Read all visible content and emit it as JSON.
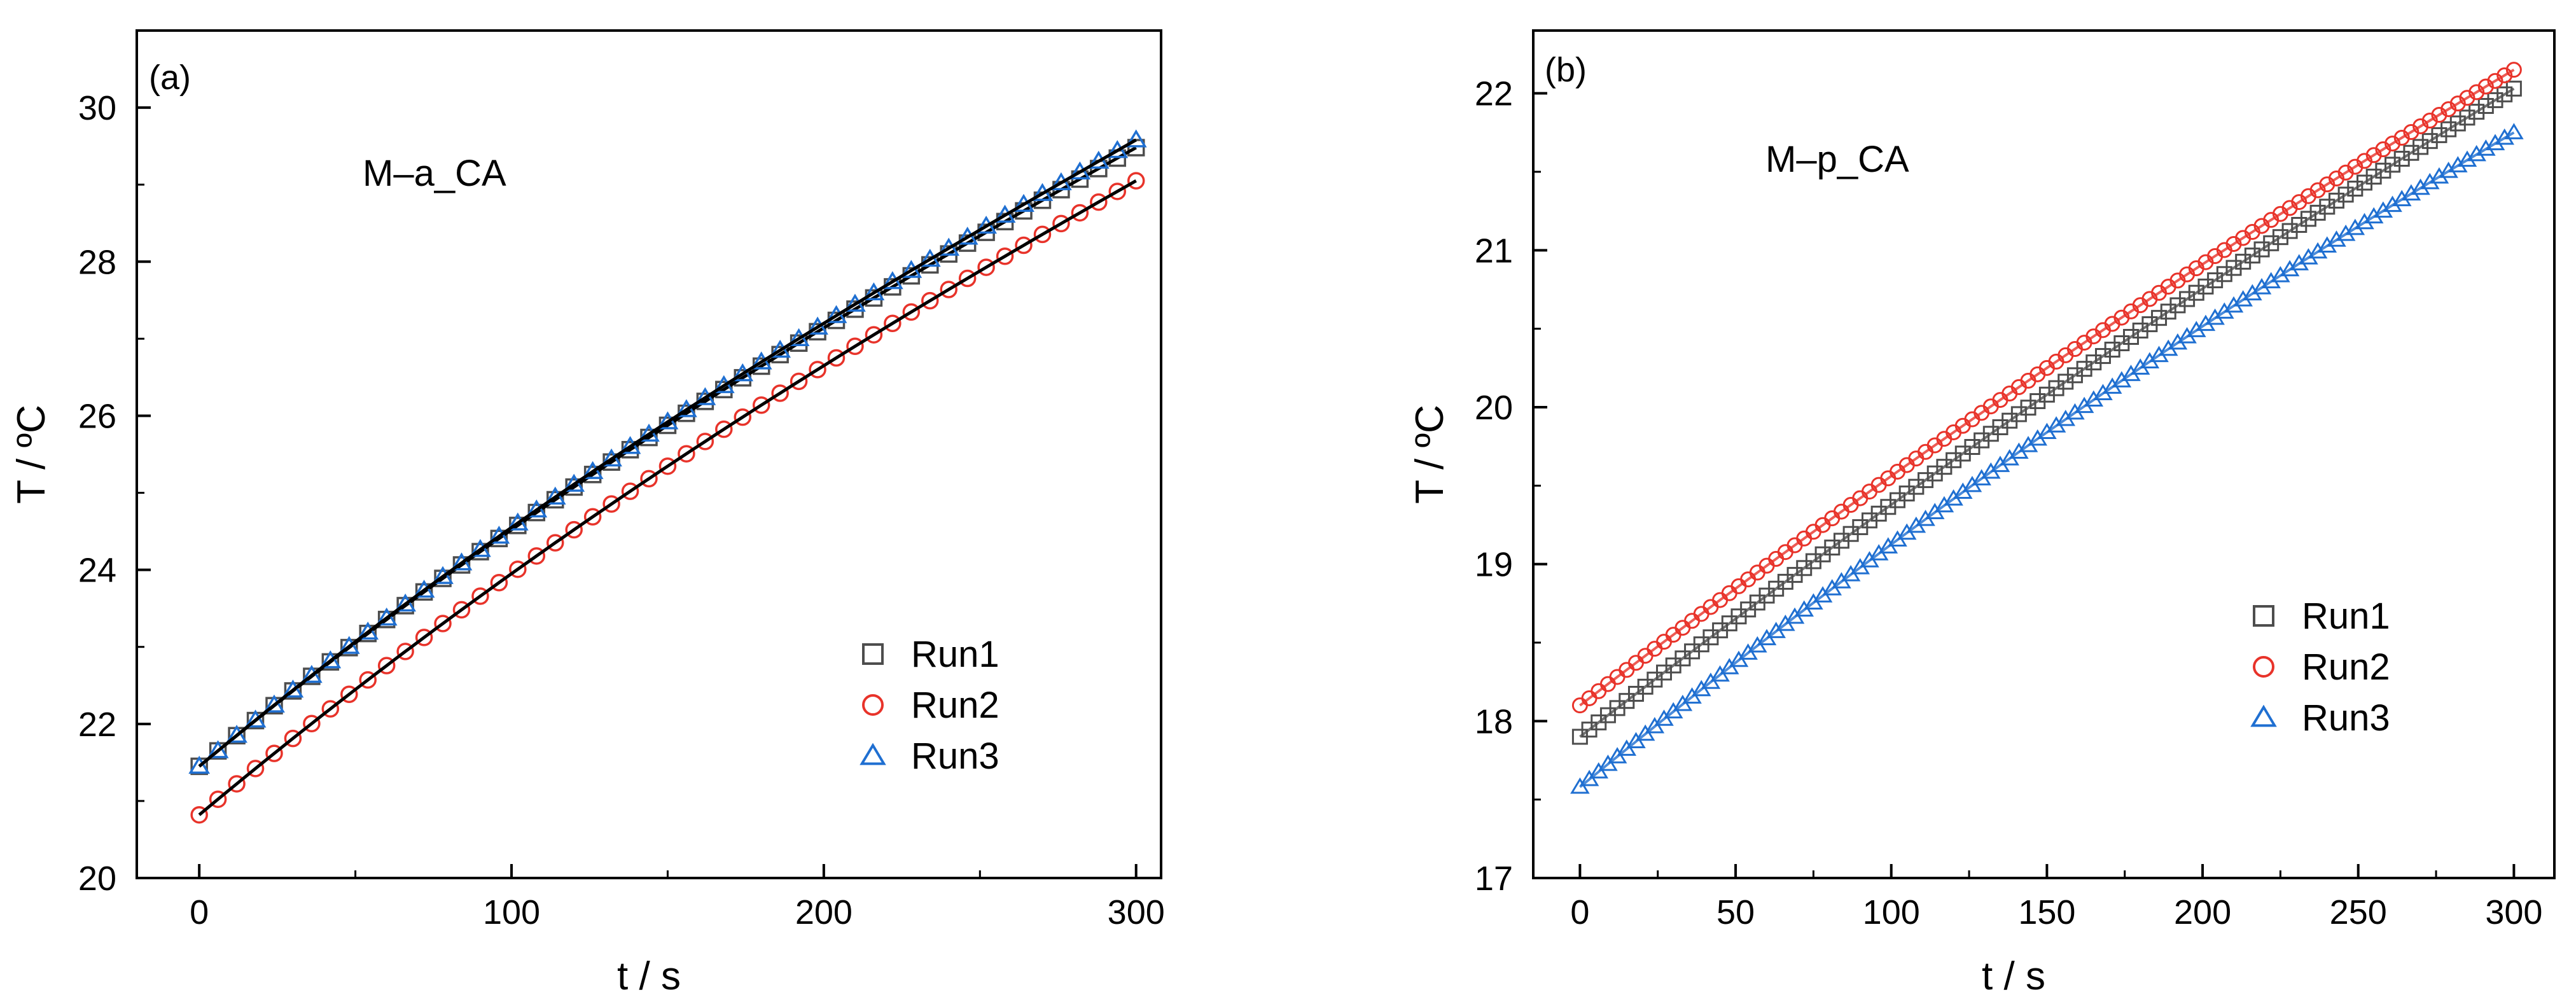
{
  "colors": {
    "run1": "#4d4d4d",
    "run2": "#e8332a",
    "run3": "#1f6fd1",
    "fit": "#000000"
  },
  "chart_data": [
    {
      "type": "scatter",
      "panel_label": "(a)",
      "annotation": "M–a_CA",
      "xlabel": "t / s",
      "ylabel": "T / ºC",
      "xlim": [
        -20,
        308
      ],
      "ylim": [
        20,
        31
      ],
      "xticks": [
        0,
        100,
        200,
        300
      ],
      "yticks": [
        20,
        22,
        24,
        26,
        28,
        30
      ],
      "legend": [
        "Run1",
        "Run2",
        "Run3"
      ],
      "legend_position": "lower-right",
      "series": [
        {
          "name": "Run1",
          "marker": "square",
          "t": [
            0,
            100,
            200,
            300
          ],
          "T": [
            21.45,
            24.52,
            27.14,
            29.48
          ]
        },
        {
          "name": "Run2",
          "marker": "circle",
          "t": [
            0,
            100,
            200,
            300
          ],
          "T": [
            20.82,
            23.95,
            26.65,
            29.05
          ]
        },
        {
          "name": "Run3",
          "marker": "triangle",
          "t": [
            0,
            100,
            200,
            300
          ],
          "T": [
            21.45,
            24.55,
            27.2,
            29.58
          ]
        }
      ]
    },
    {
      "type": "scatter",
      "panel_label": "(b)",
      "annotation": "M–p_CA",
      "xlabel": "t / s",
      "ylabel": "T / ºC",
      "xlim": [
        -15,
        313
      ],
      "ylim": [
        17,
        22.4
      ],
      "xticks": [
        0,
        50,
        100,
        150,
        200,
        250,
        300
      ],
      "yticks": [
        17,
        18,
        19,
        20,
        21,
        22
      ],
      "legend": [
        "Run1",
        "Run2",
        "Run3"
      ],
      "legend_position": "lower-right",
      "series": [
        {
          "name": "Run1",
          "marker": "square",
          "t": [
            0,
            150,
            300
          ],
          "T": [
            17.9,
            20.08,
            22.03
          ]
        },
        {
          "name": "Run2",
          "marker": "circle",
          "t": [
            0,
            150,
            300
          ],
          "T": [
            18.1,
            20.25,
            22.15
          ]
        },
        {
          "name": "Run3",
          "marker": "triangle",
          "t": [
            0,
            150,
            300
          ],
          "T": [
            17.58,
            19.84,
            21.75
          ]
        }
      ]
    }
  ]
}
